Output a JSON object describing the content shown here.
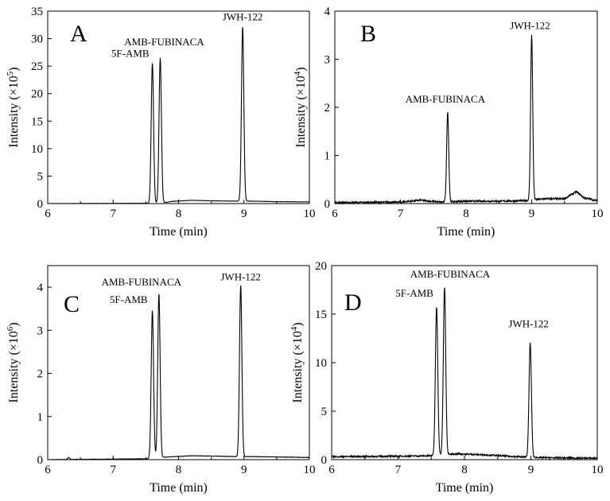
{
  "figure": {
    "background": "#ffffff",
    "line_color": "#000000"
  },
  "chart_data": [
    {
      "type": "line",
      "panel_letter": "A",
      "xlabel": "Time (min)",
      "ylabel_prefix": "Intensity (×10",
      "ylabel_exp": "5",
      "ylabel_suffix": ")",
      "xlim": [
        6,
        10
      ],
      "ylim": [
        0,
        35
      ],
      "x_ticks": [
        6,
        7,
        8,
        9,
        10
      ],
      "y_ticks": [
        0,
        5,
        10,
        15,
        20,
        25,
        30,
        35
      ],
      "grid": false,
      "baseline": [
        [
          6.0,
          0.0
        ],
        [
          7.5,
          0.05
        ],
        [
          7.75,
          0.1
        ],
        [
          7.9,
          0.4
        ],
        [
          8.2,
          0.6
        ],
        [
          8.5,
          0.5
        ],
        [
          8.85,
          0.45
        ],
        [
          9.1,
          0.45
        ],
        [
          9.5,
          0.35
        ],
        [
          10.0,
          0.3
        ]
      ],
      "peaks": [
        {
          "label": "5F-AMB",
          "x": 7.6,
          "y": 25.5,
          "width": 0.018
        },
        {
          "label": "AMB-FUBINACA",
          "x": 7.72,
          "y": 26.5,
          "width": 0.018
        },
        {
          "label": "JWH-122",
          "x": 8.98,
          "y": 32.2,
          "width": 0.018
        }
      ],
      "noise": 0.02
    },
    {
      "type": "line",
      "panel_letter": "B",
      "xlabel": "Time (min)",
      "ylabel_prefix": "Intensity (×10",
      "ylabel_exp": "4",
      "ylabel_suffix": ")",
      "xlim": [
        6,
        10
      ],
      "ylim": [
        0,
        4
      ],
      "x_ticks": [
        6,
        7,
        8,
        9,
        10
      ],
      "y_ticks": [
        0,
        1,
        2,
        3,
        4
      ],
      "grid": false,
      "baseline": [
        [
          6.0,
          0.02
        ],
        [
          7.0,
          0.03
        ],
        [
          7.3,
          0.07
        ],
        [
          7.6,
          0.03
        ],
        [
          8.0,
          0.05
        ],
        [
          8.5,
          0.05
        ],
        [
          8.9,
          0.06
        ],
        [
          9.2,
          0.1
        ],
        [
          9.5,
          0.1
        ],
        [
          9.68,
          0.25
        ],
        [
          9.8,
          0.12
        ],
        [
          10.0,
          0.06
        ]
      ],
      "peaks": [
        {
          "label": "AMB-FUBINACA",
          "x": 7.72,
          "y": 1.9,
          "width": 0.016
        },
        {
          "label": "JWH-122",
          "x": 9.0,
          "y": 3.5,
          "width": 0.016
        }
      ],
      "noise": 0.018
    },
    {
      "type": "line",
      "panel_letter": "C",
      "xlabel": "Time (min)",
      "ylabel_prefix": "Intensity (×10",
      "ylabel_exp": "6",
      "ylabel_suffix": ")",
      "xlim": [
        6,
        10
      ],
      "ylim": [
        0,
        4.5
      ],
      "x_ticks": [
        6,
        7,
        8,
        9,
        10
      ],
      "y_ticks": [
        0,
        1,
        2,
        3,
        4
      ],
      "grid": false,
      "baseline": [
        [
          6.0,
          0.0
        ],
        [
          7.5,
          0.02
        ],
        [
          7.8,
          0.06
        ],
        [
          8.2,
          0.09
        ],
        [
          8.6,
          0.08
        ],
        [
          8.9,
          0.07
        ],
        [
          9.2,
          0.07
        ],
        [
          9.6,
          0.06
        ],
        [
          10.0,
          0.05
        ]
      ],
      "peaks": [
        {
          "label": "5F-AMB",
          "x": 7.6,
          "y": 3.45,
          "width": 0.018
        },
        {
          "label": "AMB-FUBINACA",
          "x": 7.7,
          "y": 3.85,
          "width": 0.018
        },
        {
          "label": "JWH-122",
          "x": 8.95,
          "y": 4.05,
          "width": 0.018
        },
        {
          "label": "",
          "x": 6.32,
          "y": 0.05,
          "width": 0.015
        }
      ],
      "noise": 0.004
    },
    {
      "type": "line",
      "panel_letter": "D",
      "xlabel": "Time (min)",
      "ylabel_prefix": "Intensity (×10",
      "ylabel_exp": "4",
      "ylabel_suffix": ")",
      "xlim": [
        6,
        10
      ],
      "ylim": [
        0,
        20
      ],
      "x_ticks": [
        6,
        7,
        8,
        9,
        10
      ],
      "y_ticks": [
        0,
        5,
        10,
        15,
        20
      ],
      "grid": false,
      "baseline": [
        [
          6.0,
          0.3
        ],
        [
          7.0,
          0.35
        ],
        [
          7.5,
          0.4
        ],
        [
          7.9,
          0.6
        ],
        [
          8.3,
          0.5
        ],
        [
          8.8,
          0.3
        ],
        [
          9.2,
          0.2
        ],
        [
          10.0,
          0.15
        ]
      ],
      "peaks": [
        {
          "label": "5F-AMB",
          "x": 7.58,
          "y": 15.8,
          "width": 0.018
        },
        {
          "label": "AMB-FUBINACA",
          "x": 7.7,
          "y": 17.8,
          "width": 0.018
        },
        {
          "label": "JWH-122",
          "x": 8.99,
          "y": 12.0,
          "width": 0.018
        }
      ],
      "noise": 0.08
    }
  ]
}
